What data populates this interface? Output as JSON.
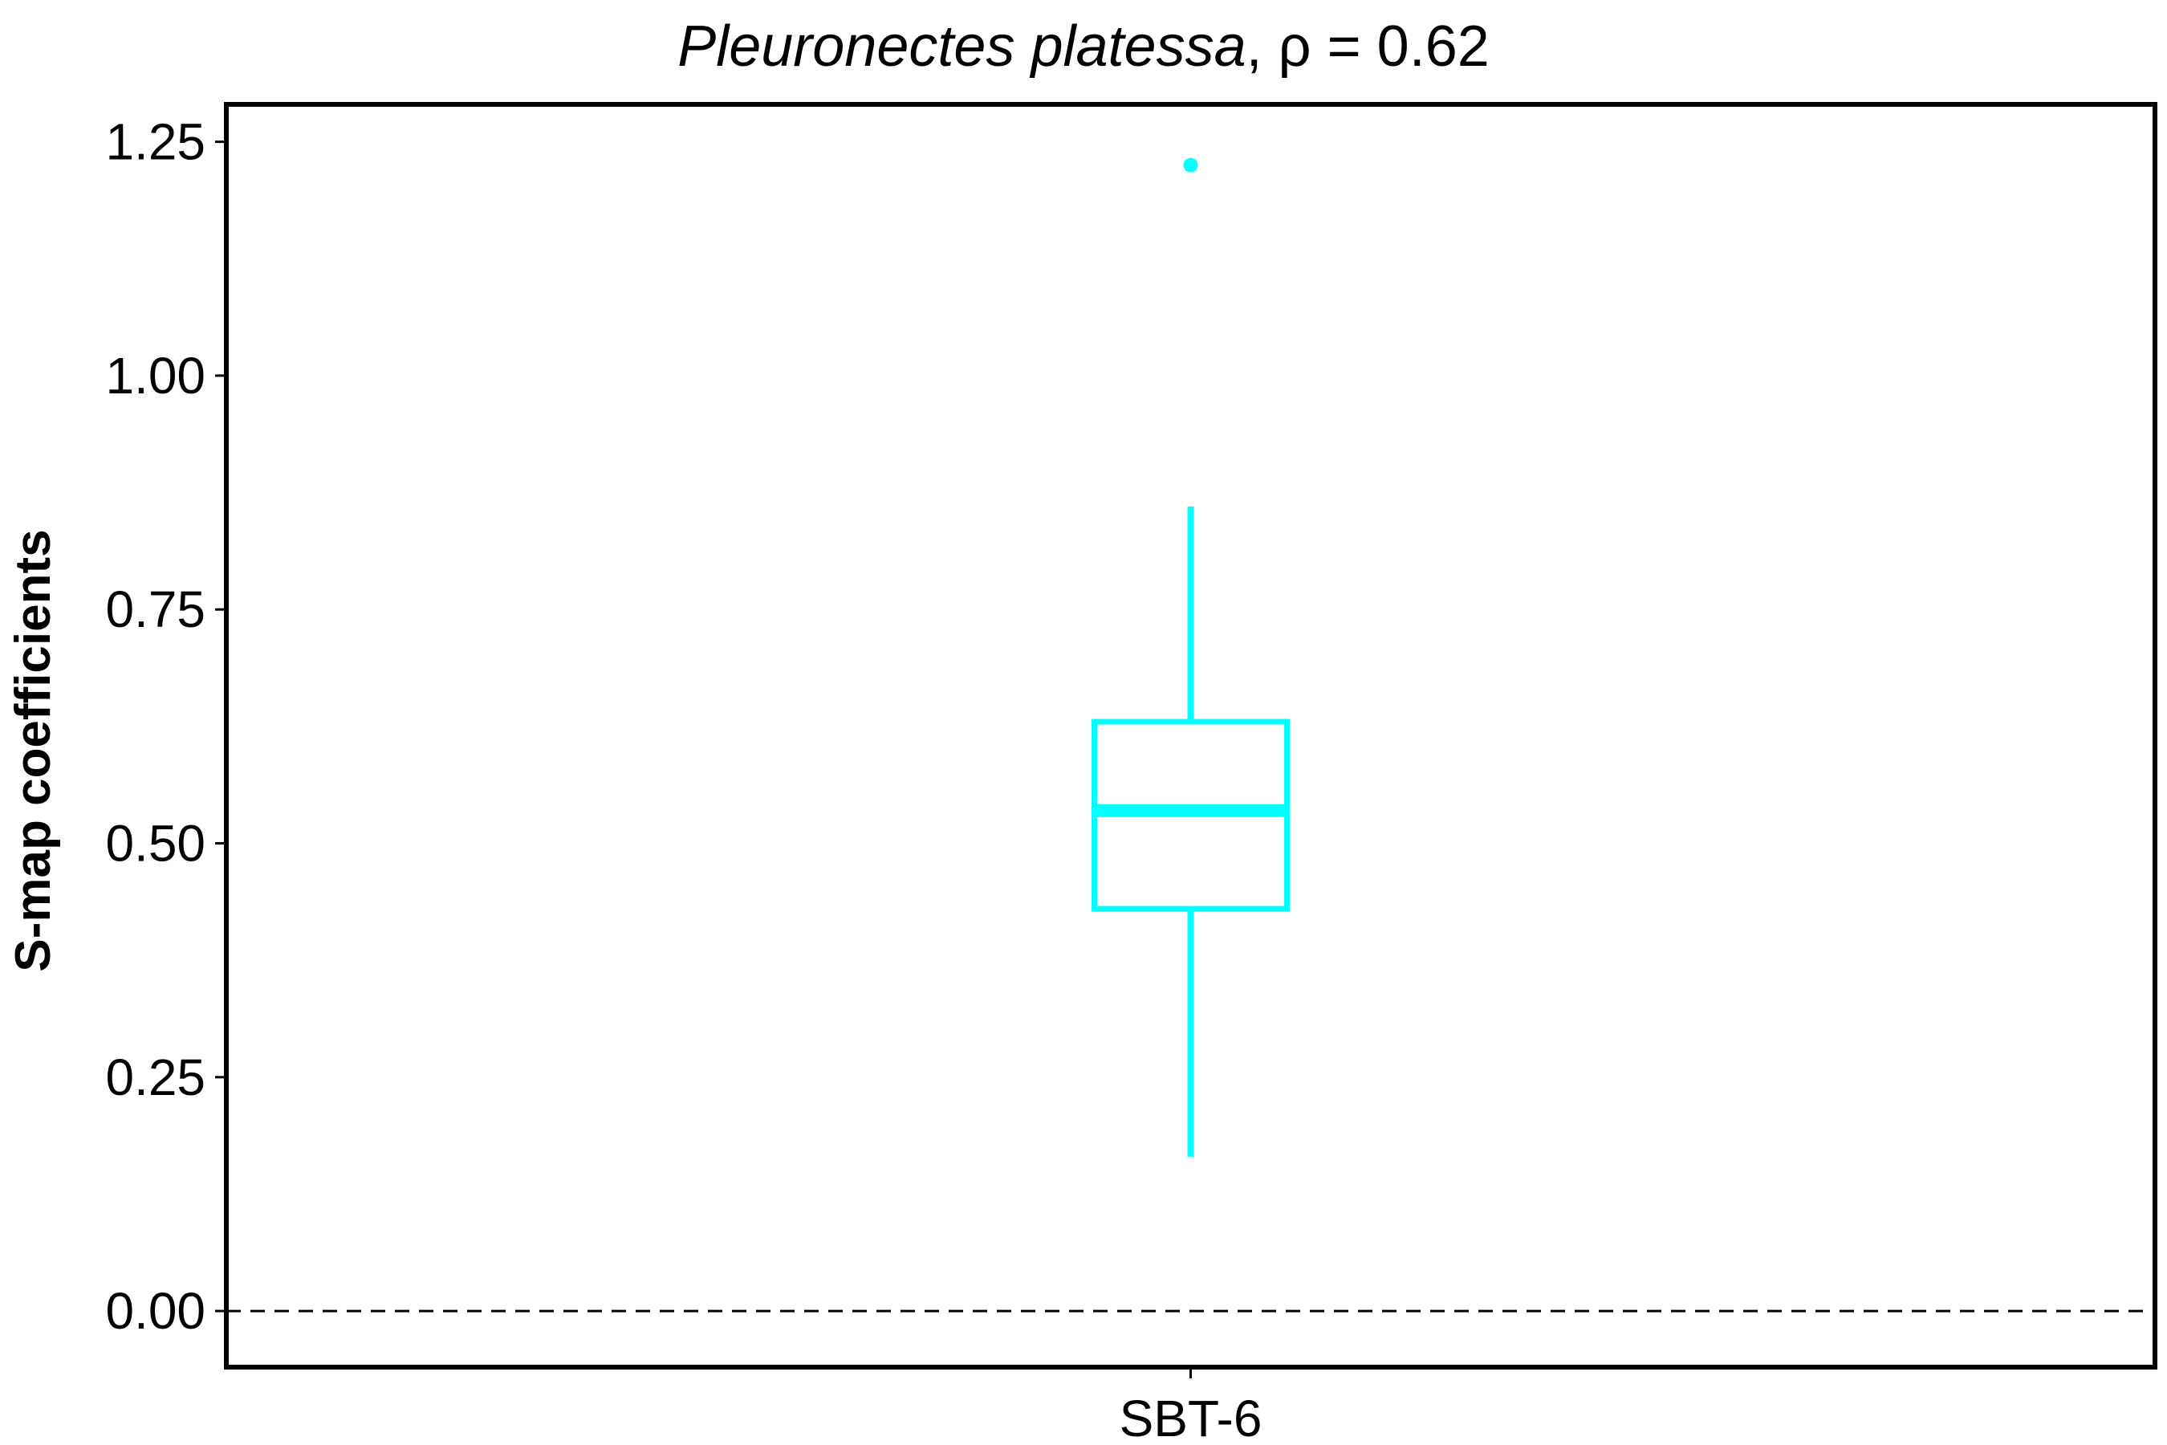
{
  "chart_data": {
    "type": "box",
    "title": {
      "species": "Pleuronectes platessa",
      "stat": ", ρ = 0.62"
    },
    "xlabel": "",
    "ylabel": "S-map coefficients",
    "ylim": [
      -0.06,
      1.29
    ],
    "yticks": [
      0.0,
      0.25,
      0.5,
      0.75,
      1.0,
      1.25
    ],
    "ytick_labels": [
      "0.00",
      "0.25",
      "0.50",
      "0.75",
      "1.00",
      "1.25"
    ],
    "categories": [
      "SBT-6"
    ],
    "boxes": [
      {
        "category": "SBT-6",
        "whisker_low": 0.165,
        "q1": 0.43,
        "median": 0.535,
        "q3": 0.63,
        "whisker_high": 0.86,
        "outliers": [
          1.225
        ]
      }
    ],
    "reference_line": {
      "y": 0.0,
      "style": "dashed"
    },
    "grid": false,
    "colors": {
      "box": "#00ffff",
      "frame": "#000000",
      "reference": "#000000"
    }
  }
}
